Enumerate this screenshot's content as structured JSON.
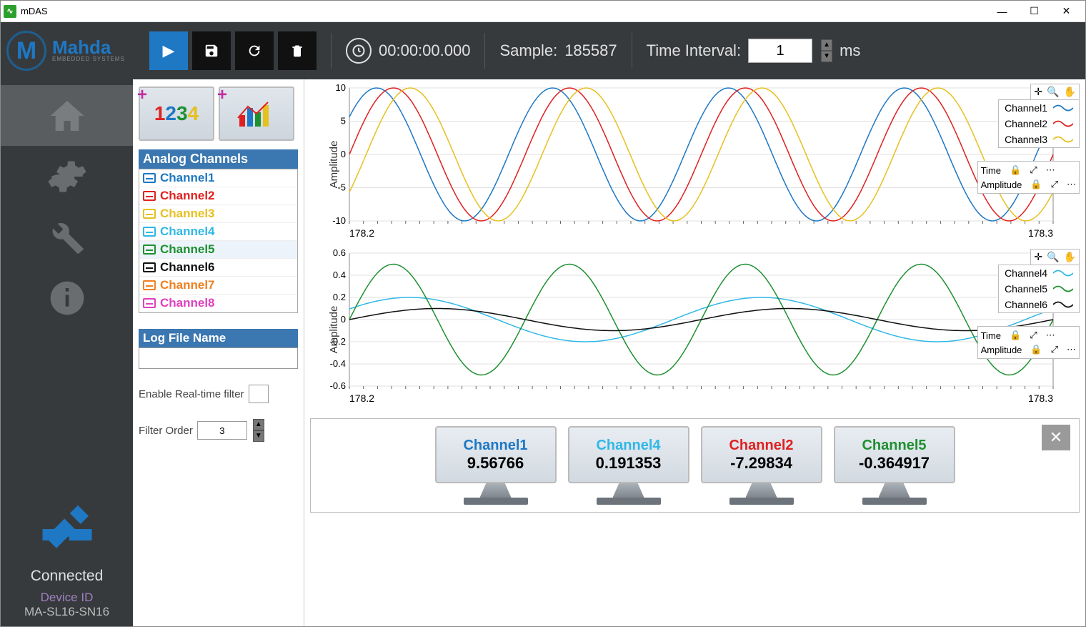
{
  "titlebar": {
    "title": "mDAS"
  },
  "logo": {
    "brand": "Mahda",
    "sub": "EMBEDDED SYSTEMS"
  },
  "toolbar": {
    "timer": "00:00:00.000",
    "sample_label": "Sample:",
    "sample_value": "185587",
    "interval_label": "Time Interval:",
    "interval_value": "1",
    "interval_unit": "ms"
  },
  "sidebar": {
    "connected_label": "Connected",
    "devid_label": "Device ID",
    "devid_value": "MA-SL16-SN16"
  },
  "channel_panel": {
    "header": "Analog Channels",
    "channels": [
      {
        "name": "Channel1",
        "color": "#1e78c4"
      },
      {
        "name": "Channel2",
        "color": "#e02020"
      },
      {
        "name": "Channel3",
        "color": "#e6c020"
      },
      {
        "name": "Channel4",
        "color": "#30b8e6"
      },
      {
        "name": "Channel5",
        "color": "#1e9030"
      },
      {
        "name": "Channel6",
        "color": "#111111"
      },
      {
        "name": "Channel7",
        "color": "#f08020"
      },
      {
        "name": "Channel8",
        "color": "#e040c0"
      }
    ],
    "selected_index": 4,
    "log_header": "Log File Name",
    "log_value": "",
    "filter_enable_label": "Enable Real-time filter",
    "filter_order_label": "Filter Order",
    "filter_order_value": "3"
  },
  "chart1": {
    "ylabel": "Amplitude",
    "x_min": 178.2,
    "x_max": 178.3,
    "y_min": -10,
    "y_max": 10,
    "y_ticks": [
      -10,
      -5,
      0,
      5,
      10
    ],
    "grid_color": "#e0e0e0",
    "legend_items": [
      {
        "label": "Channel1",
        "color": "#1e78c4"
      },
      {
        "label": "Channel2",
        "color": "#e02020"
      },
      {
        "label": "Channel3",
        "color": "#e6c020"
      }
    ],
    "axis_labels": [
      "Time",
      "Amplitude"
    ],
    "series": [
      {
        "color": "#1e78c4",
        "amp": 10,
        "cycles": 4,
        "phase": 0.6
      },
      {
        "color": "#e02020",
        "amp": 10,
        "cycles": 4,
        "phase": 0.0
      },
      {
        "color": "#e6c020",
        "amp": 10,
        "cycles": 4,
        "phase": -0.6
      }
    ]
  },
  "chart2": {
    "ylabel": "Amplitude",
    "x_min": 178.2,
    "x_max": 178.3,
    "y_min": -0.6,
    "y_max": 0.6,
    "y_ticks": [
      -0.6,
      -0.4,
      -0.2,
      0,
      0.2,
      0.4,
      0.6
    ],
    "grid_color": "#e0e0e0",
    "legend_items": [
      {
        "label": "Channel4",
        "color": "#30b8e6"
      },
      {
        "label": "Channel5",
        "color": "#1e9030"
      },
      {
        "label": "Channel6",
        "color": "#111111"
      }
    ],
    "axis_labels": [
      "Time",
      "Amplitude"
    ],
    "series": [
      {
        "color": "#30b8e6",
        "amp": 0.2,
        "cycles": 2,
        "phase": 0.5
      },
      {
        "color": "#1e9030",
        "amp": 0.5,
        "cycles": 4,
        "phase": 0.0
      },
      {
        "color": "#111111",
        "amp": 0.1,
        "cycles": 2,
        "phase": 0.0
      }
    ]
  },
  "value_cards": [
    {
      "name": "Channel1",
      "color": "#1e78c4",
      "value": "9.56766"
    },
    {
      "name": "Channel4",
      "color": "#30b8e6",
      "value": "0.191353"
    },
    {
      "name": "Channel2",
      "color": "#e02020",
      "value": "-7.29834"
    },
    {
      "name": "Channel5",
      "color": "#1e9030",
      "value": "-0.364917"
    }
  ]
}
